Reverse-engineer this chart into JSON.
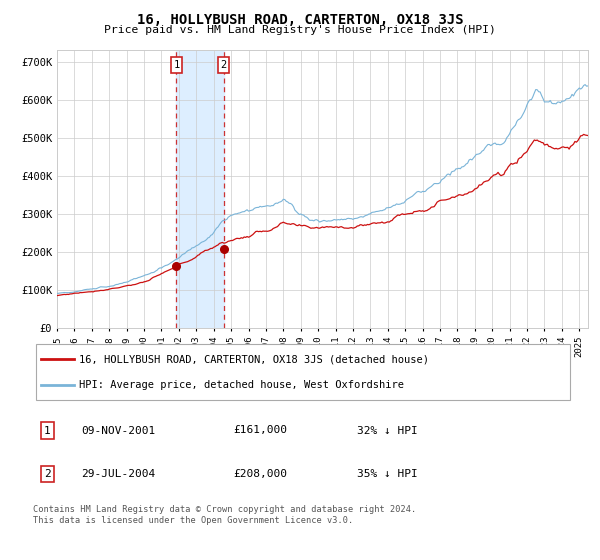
{
  "title": "16, HOLLYBUSH ROAD, CARTERTON, OX18 3JS",
  "subtitle": "Price paid vs. HM Land Registry's House Price Index (HPI)",
  "legend_line1": "16, HOLLYBUSH ROAD, CARTERTON, OX18 3JS (detached house)",
  "legend_line2": "HPI: Average price, detached house, West Oxfordshire",
  "sale1_date": "09-NOV-2001",
  "sale1_price": "£161,000",
  "sale1_hpi": "32% ↓ HPI",
  "sale1_date_num": 2001.856,
  "sale1_value": 161000,
  "sale2_date": "29-JUL-2004",
  "sale2_price": "£208,000",
  "sale2_hpi": "35% ↓ HPI",
  "sale2_date_num": 2004.569,
  "sale2_value": 208000,
  "hpi_color": "#7ab4d8",
  "price_color": "#cc1111",
  "marker_color": "#aa0000",
  "shade_color": "#ddeeff",
  "vline_color": "#cc3333",
  "yticks": [
    0,
    100000,
    200000,
    300000,
    400000,
    500000,
    600000,
    700000
  ],
  "ytick_labels": [
    "£0",
    "£100K",
    "£200K",
    "£300K",
    "£400K",
    "£500K",
    "£600K",
    "£700K"
  ],
  "xmin": 1995.0,
  "xmax": 2025.5,
  "ymin": 0,
  "ymax": 730000,
  "footer": "Contains HM Land Registry data © Crown copyright and database right 2024.\nThis data is licensed under the Open Government Licence v3.0.",
  "grid_color": "#cccccc",
  "background_color": "#ffffff"
}
